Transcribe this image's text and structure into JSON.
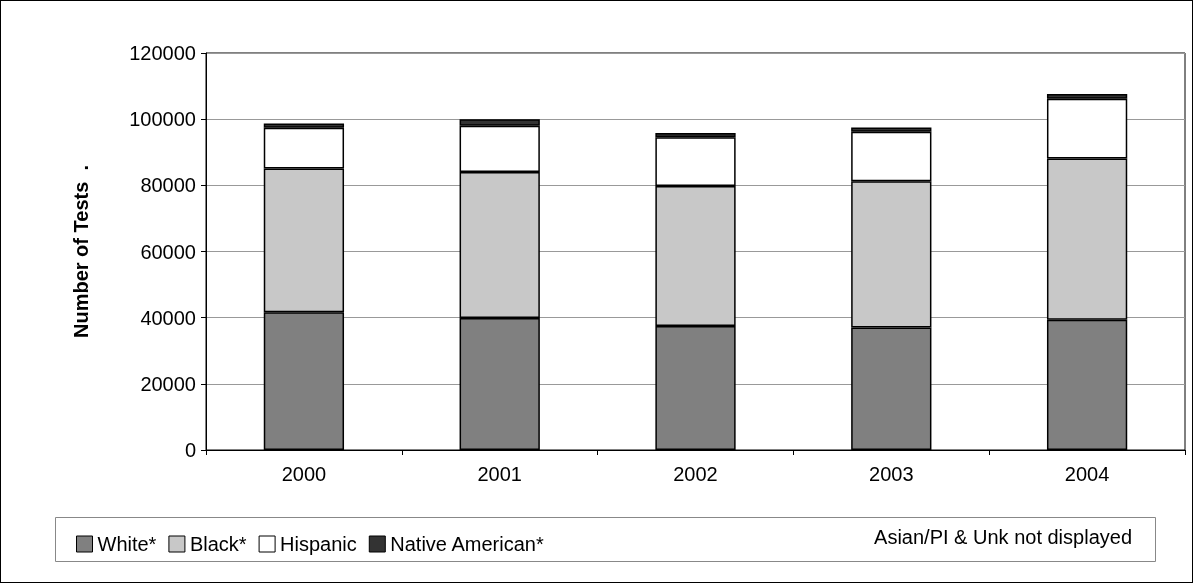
{
  "chart_data": {
    "type": "bar",
    "stacked": true,
    "ylabel": "Number of Tests  .",
    "categories": [
      "2000",
      "2001",
      "2002",
      "2003",
      "2004"
    ],
    "series": [
      {
        "name": "White*",
        "color": "#808080",
        "values": [
          41600,
          39900,
          37500,
          37000,
          39400
        ]
      },
      {
        "name": "Black*",
        "color": "#c8c8c8",
        "values": [
          43500,
          44100,
          42300,
          44200,
          48700
        ]
      },
      {
        "name": "Hispanic",
        "color": "#ffffff",
        "values": [
          12300,
          14000,
          14700,
          15000,
          18100
        ]
      },
      {
        "name": "Native American*",
        "color": "#333333",
        "values": [
          1300,
          2000,
          1300,
          1300,
          1400
        ]
      }
    ],
    "ylim": [
      0,
      120000
    ],
    "yticks": [
      0,
      20000,
      40000,
      60000,
      80000,
      100000,
      120000
    ],
    "grid": "y",
    "legend": "bottom",
    "annotations": [
      "Asian/PI & Unk not displayed"
    ]
  }
}
